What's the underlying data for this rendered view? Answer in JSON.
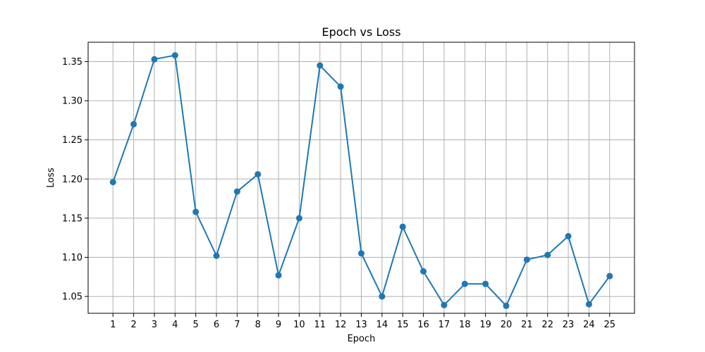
{
  "chart_data": {
    "type": "line",
    "title": "Epoch vs Loss",
    "xlabel": "Epoch",
    "ylabel": "Loss",
    "x": [
      1,
      2,
      3,
      4,
      5,
      6,
      7,
      8,
      9,
      10,
      11,
      12,
      13,
      14,
      15,
      16,
      17,
      18,
      19,
      20,
      21,
      22,
      23,
      24,
      25
    ],
    "x_ticks": [
      "1",
      "2",
      "3",
      "4",
      "5",
      "6",
      "7",
      "8",
      "9",
      "10",
      "11",
      "12",
      "13",
      "14",
      "15",
      "16",
      "17",
      "18",
      "19",
      "20",
      "21",
      "22",
      "23",
      "24",
      "25"
    ],
    "y_ticks": [
      "1.05",
      "1.10",
      "1.15",
      "1.20",
      "1.25",
      "1.30",
      "1.35"
    ],
    "y_tick_values": [
      1.05,
      1.1,
      1.15,
      1.2,
      1.25,
      1.3,
      1.35
    ],
    "xlim": [
      -0.2,
      26.2
    ],
    "ylim": [
      1.0285,
      1.3747
    ],
    "series": [
      {
        "values": [
          1.196,
          1.27,
          1.353,
          1.358,
          1.158,
          1.102,
          1.184,
          1.206,
          1.077,
          1.15,
          1.345,
          1.318,
          1.105,
          1.05,
          1.139,
          1.082,
          1.039,
          1.066,
          1.066,
          1.038,
          1.097,
          1.103,
          1.127,
          1.04,
          1.076
        ],
        "color": "#1f77b4"
      }
    ],
    "grid": true,
    "markers": true
  }
}
